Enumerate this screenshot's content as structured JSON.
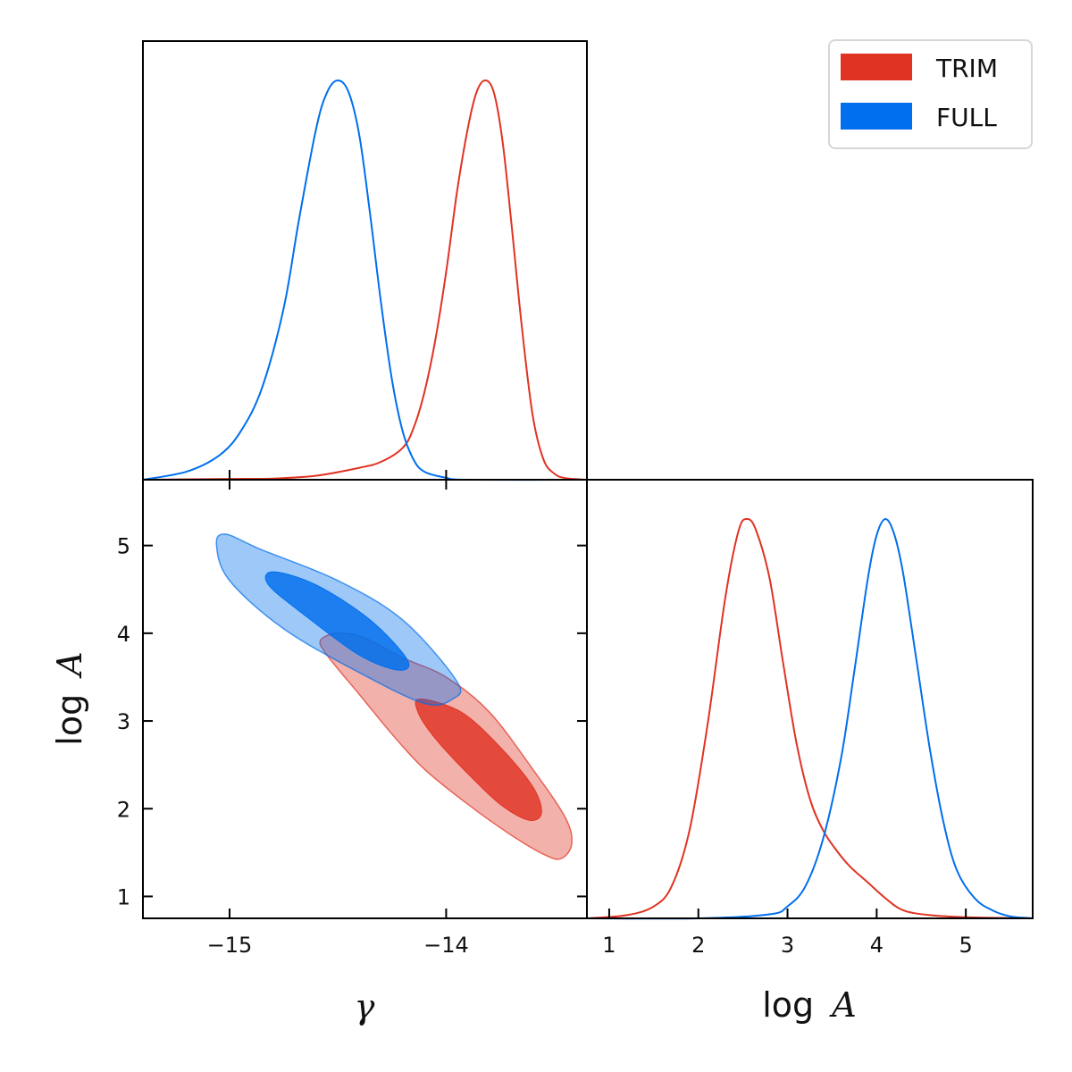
{
  "chart_data": {
    "type": "corner",
    "legend": {
      "placement": "top-right",
      "entries": [
        {
          "label": "TRIM",
          "color": "#e03323"
        },
        {
          "label": "FULL",
          "color": "#006fed"
        }
      ]
    },
    "parameters": [
      {
        "name": "gamma",
        "label": "γ",
        "range": [
          -15.4,
          -13.35
        ],
        "ticks": [
          -15,
          -14
        ],
        "tick_labels": [
          "−15",
          "−14"
        ]
      },
      {
        "name": "logA",
        "label": "log A",
        "label_prefix": "log",
        "label_var": "A",
        "range": [
          0.75,
          5.75
        ],
        "ticks": [
          1,
          2,
          3,
          4,
          5
        ],
        "tick_labels": [
          "1",
          "2",
          "3",
          "4",
          "5"
        ]
      }
    ],
    "series": [
      {
        "name": "TRIM",
        "color": "#e03323",
        "gamma_marginal": {
          "x": [
            -15.4,
            -15.0,
            -14.8,
            -14.6,
            -14.4,
            -14.3,
            -14.2,
            -14.15,
            -14.1,
            -14.05,
            -14.0,
            -13.95,
            -13.9,
            -13.86,
            -13.82,
            -13.78,
            -13.74,
            -13.7,
            -13.65,
            -13.6,
            -13.55,
            -13.5,
            -13.45,
            -13.35
          ],
          "y": [
            0.0,
            0.002,
            0.003,
            0.01,
            0.03,
            0.045,
            0.08,
            0.13,
            0.22,
            0.35,
            0.52,
            0.72,
            0.88,
            0.97,
            1.0,
            0.97,
            0.85,
            0.65,
            0.38,
            0.16,
            0.05,
            0.015,
            0.004,
            0.0
          ]
        },
        "logA_marginal": {
          "x": [
            0.75,
            1.2,
            1.5,
            1.7,
            1.9,
            2.1,
            2.3,
            2.45,
            2.55,
            2.65,
            2.8,
            2.95,
            3.1,
            3.25,
            3.4,
            3.55,
            3.7,
            3.9,
            4.1,
            4.3,
            4.6,
            5.0,
            5.75
          ],
          "y": [
            0.0,
            0.008,
            0.03,
            0.08,
            0.22,
            0.48,
            0.8,
            0.97,
            1.0,
            0.97,
            0.85,
            0.64,
            0.44,
            0.3,
            0.22,
            0.17,
            0.13,
            0.09,
            0.05,
            0.02,
            0.008,
            0.003,
            0.0
          ]
        },
        "contour_95": [
          [
            -14.5,
            4.0
          ],
          [
            -14.38,
            3.95
          ],
          [
            -14.2,
            3.72
          ],
          [
            -14.0,
            3.5
          ],
          [
            -13.8,
            3.1
          ],
          [
            -13.6,
            2.45
          ],
          [
            -13.45,
            1.9
          ],
          [
            -13.42,
            1.6
          ],
          [
            -13.47,
            1.43
          ],
          [
            -13.55,
            1.48
          ],
          [
            -13.7,
            1.7
          ],
          [
            -13.9,
            2.05
          ],
          [
            -14.1,
            2.45
          ],
          [
            -14.25,
            2.85
          ],
          [
            -14.4,
            3.3
          ],
          [
            -14.55,
            3.75
          ],
          [
            -14.58,
            3.92
          ]
        ],
        "contour_68": [
          [
            -14.12,
            3.25
          ],
          [
            -13.93,
            3.1
          ],
          [
            -13.75,
            2.7
          ],
          [
            -13.6,
            2.25
          ],
          [
            -13.56,
            1.95
          ],
          [
            -13.62,
            1.87
          ],
          [
            -13.75,
            2.05
          ],
          [
            -13.9,
            2.4
          ],
          [
            -14.05,
            2.8
          ],
          [
            -14.13,
            3.1
          ]
        ]
      },
      {
        "name": "FULL",
        "color": "#006fed",
        "gamma_marginal": {
          "x": [
            -15.4,
            -15.2,
            -15.05,
            -14.95,
            -14.85,
            -14.75,
            -14.68,
            -14.6,
            -14.55,
            -14.5,
            -14.45,
            -14.4,
            -14.35,
            -14.3,
            -14.25,
            -14.2,
            -14.15,
            -14.1,
            -14.0,
            -13.9,
            -13.35
          ],
          "y": [
            0.0,
            0.02,
            0.06,
            0.12,
            0.23,
            0.43,
            0.65,
            0.88,
            0.97,
            1.0,
            0.97,
            0.86,
            0.66,
            0.44,
            0.25,
            0.12,
            0.05,
            0.02,
            0.005,
            0.0,
            0.0
          ]
        },
        "logA_marginal": {
          "x": [
            0.75,
            2.0,
            2.8,
            3.0,
            3.2,
            3.4,
            3.6,
            3.75,
            3.9,
            4.0,
            4.1,
            4.2,
            4.3,
            4.45,
            4.6,
            4.75,
            4.9,
            5.1,
            5.3,
            5.5,
            5.75
          ],
          "y": [
            0.0,
            0.0,
            0.01,
            0.03,
            0.08,
            0.2,
            0.4,
            0.62,
            0.85,
            0.96,
            1.0,
            0.96,
            0.86,
            0.64,
            0.42,
            0.24,
            0.12,
            0.05,
            0.02,
            0.005,
            0.0
          ]
        },
        "contour_95": [
          [
            -15.02,
            5.13
          ],
          [
            -14.85,
            4.95
          ],
          [
            -14.5,
            4.6
          ],
          [
            -14.2,
            4.15
          ],
          [
            -13.95,
            3.45
          ],
          [
            -13.97,
            3.25
          ],
          [
            -14.1,
            3.2
          ],
          [
            -14.4,
            3.55
          ],
          [
            -14.75,
            4.05
          ],
          [
            -15.0,
            4.6
          ],
          [
            -15.06,
            5.0
          ]
        ],
        "contour_68": [
          [
            -14.8,
            4.7
          ],
          [
            -14.6,
            4.55
          ],
          [
            -14.35,
            4.15
          ],
          [
            -14.18,
            3.7
          ],
          [
            -14.22,
            3.58
          ],
          [
            -14.4,
            3.75
          ],
          [
            -14.65,
            4.2
          ],
          [
            -14.82,
            4.55
          ]
        ]
      }
    ]
  }
}
